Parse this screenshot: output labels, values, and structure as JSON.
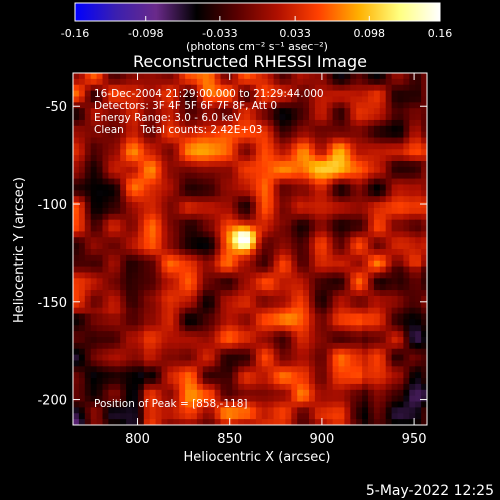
{
  "chart_data": {
    "type": "heatmap",
    "title": "Reconstructed RHESSI Image",
    "xlabel": "Heliocentric X (arcsec)",
    "ylabel": "Heliocentric Y (arcsec)",
    "xlim": [
      765,
      957
    ],
    "ylim": [
      -213,
      -33
    ],
    "x_ticks": [
      800,
      850,
      900,
      950
    ],
    "y_ticks": [
      -50,
      -100,
      -150,
      -200
    ],
    "colorbar": {
      "range": [
        -0.16,
        0.16
      ],
      "ticks": [
        "-0.16",
        "-0.098",
        "-0.033",
        "0.033",
        "0.098",
        "0.16"
      ],
      "units_label": "(photons cm⁻² s⁻¹ asec⁻²)",
      "colors": [
        "#0000ff",
        "#3a1fb0",
        "#6a2a8a",
        "#000000",
        "#5a0000",
        "#b01000",
        "#ff4000",
        "#ffb000",
        "#ffff80",
        "#ffffff"
      ]
    },
    "info_lines": [
      "16-Dec-2004 21:29:00.000 to 21:29:44.000",
      "Detectors: 3F 4F 5F 6F 7F 8F, Att 0",
      "Energy Range: 3.0 - 6.0 keV",
      "Clean     Total counts: 2.42E+03"
    ],
    "peak_label": "Position of Peak = [858,-118]",
    "peak": {
      "x": 858,
      "y": -118,
      "value": 0.16
    },
    "secondary_sources": [
      {
        "x": 882,
        "y": -158,
        "value": 0.07
      },
      {
        "x": 835,
        "y": -70,
        "value": 0.045
      },
      {
        "x": 900,
        "y": -80,
        "value": 0.04
      },
      {
        "x": 800,
        "y": -90,
        "value": 0.035
      }
    ]
  },
  "footer": {
    "date": "5-May-2022 12:25"
  }
}
